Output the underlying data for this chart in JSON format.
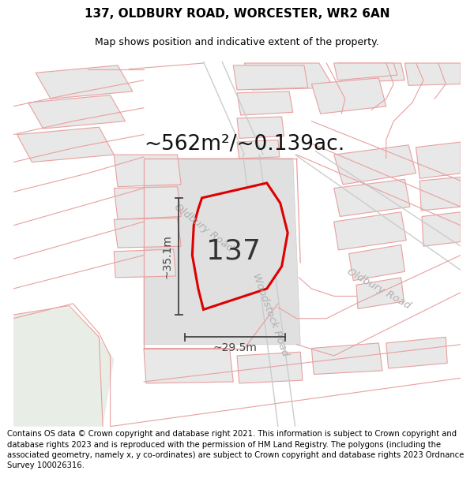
{
  "title_line1": "137, OLDBURY ROAD, WORCESTER, WR2 6AN",
  "title_line2": "Map shows position and indicative extent of the property.",
  "footer_text": "Contains OS data © Crown copyright and database right 2021. This information is subject to Crown copyright and database rights 2023 and is reproduced with the permission of HM Land Registry. The polygons (including the associated geometry, namely x, y co-ordinates) are subject to Crown copyright and database rights 2023 Ordnance Survey 100026316.",
  "area_label": "~562m²/~0.139ac.",
  "property_label": "137",
  "dim_horizontal": "~29.5m",
  "dim_vertical": "~35.1m",
  "road_label_oldbury_top": "Oldbury Road",
  "road_label_oldbury_right": "Oldbury Road",
  "road_label_woodstock": "Woodstock Road",
  "map_bg": "#ffffff",
  "building_fill": "#e8e8e8",
  "building_fill2": "#ebebeb",
  "road_line_color": "#e8a0a0",
  "road_line_color2": "#d0a0a0",
  "property_outline_color": "#dd0000",
  "green_area_color": "#eaede8",
  "dim_color": "#444444",
  "road_label_color": "#aaaaaa",
  "title_fontsize": 11,
  "subtitle_fontsize": 9,
  "area_fontsize": 19,
  "property_label_fontsize": 26,
  "road_label_fontsize": 10,
  "dim_fontsize": 10,
  "footer_fontsize": 7.2
}
